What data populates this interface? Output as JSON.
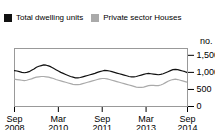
{
  "chart_data": {
    "type": "line",
    "ylabel": "no.",
    "categories": [
      "Sep\n2008",
      null,
      null,
      null,
      null,
      null,
      null,
      null,
      null,
      null,
      null,
      null,
      null,
      null,
      null,
      null,
      null,
      null,
      "Mar\n2010",
      null,
      null,
      null,
      null,
      null,
      null,
      null,
      null,
      null,
      null,
      null,
      null,
      null,
      null,
      null,
      null,
      null,
      "Sep\n2011",
      null,
      null,
      null,
      null,
      null,
      null,
      null,
      null,
      null,
      null,
      null,
      null,
      null,
      null,
      null,
      null,
      null,
      "Mar\n2013",
      null,
      null,
      null,
      null,
      null,
      null,
      null,
      null,
      null,
      null,
      null,
      null,
      null,
      null,
      null,
      null,
      "Sep\n2014"
    ],
    "series": [
      {
        "name": "Total dwelling units",
        "color": "#111111",
        "values": [
          1050,
          1040,
          1020,
          1000,
          990,
          1000,
          1020,
          1060,
          1100,
          1150,
          1180,
          1200,
          1220,
          1210,
          1190,
          1160,
          1120,
          1080,
          1040,
          1000,
          970,
          940,
          910,
          880,
          860,
          840,
          840,
          850,
          870,
          890,
          910,
          930,
          950,
          970,
          1000,
          1020,
          1040,
          1060,
          1050,
          1040,
          1020,
          1000,
          980,
          960,
          940,
          920,
          900,
          880,
          870,
          870,
          880,
          900,
          920,
          940,
          960,
          970,
          960,
          950,
          940,
          930,
          940,
          960,
          990,
          1020,
          1050,
          1080,
          1090,
          1080,
          1060,
          1040,
          1020,
          990
        ]
      },
      {
        "name": "Private sector Houses",
        "color": "#aaaaaa",
        "values": [
          800,
          790,
          780,
          770,
          760,
          770,
          790,
          810,
          840,
          860,
          870,
          880,
          880,
          870,
          860,
          840,
          820,
          790,
          770,
          750,
          730,
          710,
          690,
          670,
          650,
          640,
          640,
          650,
          670,
          690,
          710,
          730,
          750,
          770,
          790,
          810,
          820,
          820,
          810,
          790,
          770,
          750,
          730,
          710,
          690,
          670,
          650,
          630,
          610,
          590,
          570,
          560,
          560,
          570,
          590,
          610,
          620,
          620,
          610,
          610,
          630,
          660,
          700,
          740,
          770,
          790,
          800,
          790,
          770,
          750,
          730,
          710
        ]
      }
    ],
    "ylim": [
      0,
      1700
    ],
    "yticks": [
      0,
      500,
      1000,
      1500
    ],
    "legend": "upper left",
    "grid": false
  }
}
